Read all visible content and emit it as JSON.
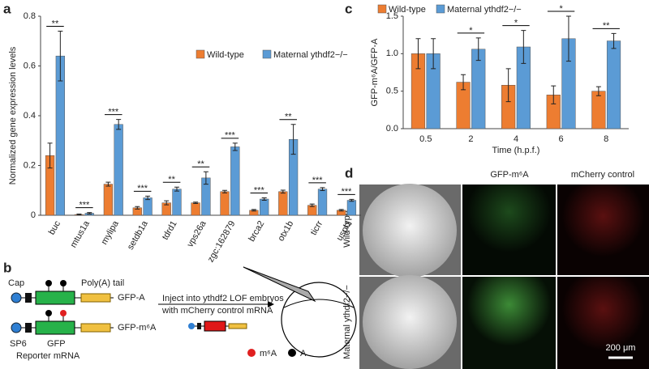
{
  "chart_data": [
    {
      "type": "bar",
      "panel_label": "a",
      "y_label": "Normalized gene expression levels",
      "categories": [
        "buc",
        "mtus1a",
        "mylipa",
        "setdb1a",
        "tdrd1",
        "vps26a",
        "zgc:162879",
        "brca2",
        "otx1b",
        "ticrr",
        "uspl1"
      ],
      "series": [
        {
          "name": "Wild-type",
          "color": "#ed7d31",
          "values": [
            0.24,
            0.003,
            0.125,
            0.03,
            0.05,
            0.05,
            0.095,
            0.02,
            0.095,
            0.04,
            0.02
          ],
          "errors": [
            0.05,
            0.002,
            0.008,
            0.005,
            0.008,
            0.003,
            0.005,
            0.003,
            0.006,
            0.005,
            0.003
          ]
        },
        {
          "name": "Maternal ythdf2−/−",
          "color": "#5b9bd5",
          "values": [
            0.64,
            0.008,
            0.365,
            0.07,
            0.105,
            0.15,
            0.275,
            0.065,
            0.305,
            0.105,
            0.06
          ],
          "errors": [
            0.1,
            0.003,
            0.02,
            0.007,
            0.008,
            0.025,
            0.015,
            0.005,
            0.06,
            0.006,
            0.004
          ]
        }
      ],
      "significance": [
        "**",
        "***",
        "***",
        "***",
        "**",
        "**",
        "***",
        "***",
        "**",
        "***",
        "***"
      ],
      "ylim": [
        0,
        0.8
      ],
      "yticks": [
        0,
        0.2,
        0.4,
        0.6,
        0.8
      ],
      "legend": "upper right"
    },
    {
      "type": "bar",
      "panel_label": "c",
      "y_label": "GFP-m⁶A/GFP-A",
      "x_label": "Time (h.p.f.)",
      "categories": [
        "0.5",
        "2",
        "4",
        "6",
        "8"
      ],
      "series": [
        {
          "name": "Wild-type",
          "color": "#ed7d31",
          "values": [
            1.0,
            0.62,
            0.58,
            0.45,
            0.5
          ],
          "errors": [
            0.2,
            0.1,
            0.22,
            0.12,
            0.06
          ]
        },
        {
          "name": "Maternal ythdf2−/−",
          "color": "#5b9bd5",
          "values": [
            1.0,
            1.06,
            1.09,
            1.2,
            1.17
          ],
          "errors": [
            0.2,
            0.15,
            0.22,
            0.3,
            0.1
          ]
        }
      ],
      "significance": [
        null,
        "*",
        "*",
        "*",
        "**"
      ],
      "ylim": [
        0,
        1.5
      ],
      "yticks": [
        {
          "value": 0,
          "label": "0.0"
        },
        0.5,
        {
          "value": 1,
          "label": "1.0"
        },
        1.5
      ],
      "legend": "top"
    }
  ],
  "diagram": {
    "panel_label": "b",
    "cap": "Cap",
    "poly_a": "Poly(A) tail",
    "construct_a": "GFP-A",
    "construct_m6a": "GFP-m⁶A",
    "sp6": "SP6",
    "gfp": "GFP",
    "reporter": "Reporter mRNA",
    "inject_line1": "Inject into ythdf2 LOF embryos",
    "inject_line2": "with mCherry control mRNA",
    "legend_m6a": "m⁶A",
    "legend_a": "A"
  },
  "images": {
    "panel_label": "d",
    "col_gfp": "GFP-m⁶A",
    "col_mcherry": "mCherry control",
    "row_wt": "Wild-type",
    "row_mat": "Maternal ythdf2−/−",
    "scale_bar": "200 μm"
  }
}
